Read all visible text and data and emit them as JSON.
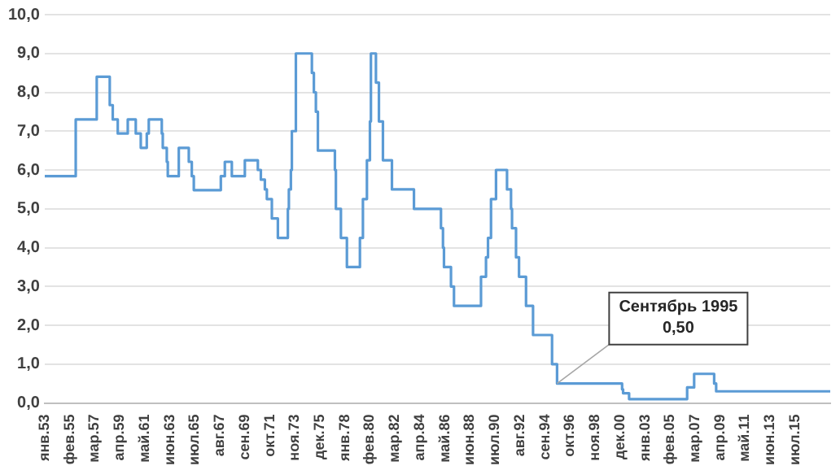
{
  "chart_data": {
    "type": "step",
    "line_style": "solid",
    "marker": "none",
    "grid": "y",
    "legend": false,
    "x": [
      "1953-01",
      "1955-08",
      "1957-05",
      "1958-06",
      "1958-09",
      "1959-02",
      "1959-12",
      "1960-08",
      "1961-01",
      "1961-07",
      "1961-09",
      "1962-10",
      "1962-11",
      "1963-03",
      "1963-04",
      "1964-03",
      "1965-01",
      "1965-04",
      "1965-06",
      "1967-09",
      "1968-01",
      "1968-08",
      "1969-09",
      "1970-10",
      "1971-01",
      "1971-05",
      "1971-07",
      "1971-12",
      "1972-06",
      "1973-04",
      "1973-05",
      "1973-07",
      "1973-08",
      "1973-12",
      "1975-04",
      "1975-06",
      "1975-08",
      "1975-10",
      "1977-03",
      "1977-04",
      "1977-09",
      "1978-03",
      "1979-04",
      "1979-07",
      "1979-11",
      "1980-02",
      "1980-03",
      "1980-08",
      "1980-11",
      "1981-03",
      "1981-12",
      "1983-10",
      "1986-01",
      "1986-03",
      "1986-04",
      "1986-11",
      "1987-02",
      "1989-05",
      "1989-10",
      "1989-12",
      "1990-03",
      "1990-08",
      "1991-07",
      "1991-11",
      "1991-12",
      "1992-04",
      "1992-07",
      "1993-02",
      "1993-09",
      "1995-04",
      "1995-09",
      "2001-02",
      "2001-03",
      "2001-09",
      "2006-07",
      "2007-02",
      "2008-10",
      "2008-12",
      "2018-06"
    ],
    "series": [
      {
        "color": "#5b9bd5",
        "values": [
          5.84,
          7.3,
          8.4,
          7.67,
          7.3,
          6.94,
          7.3,
          6.94,
          6.57,
          6.94,
          7.3,
          6.94,
          6.57,
          6.21,
          5.84,
          6.57,
          6.21,
          5.84,
          5.48,
          5.84,
          6.21,
          5.84,
          6.25,
          6.0,
          5.75,
          5.5,
          5.25,
          4.75,
          4.25,
          5.0,
          5.5,
          6.0,
          7.0,
          9.0,
          8.5,
          8.0,
          7.5,
          6.5,
          6.0,
          5.0,
          4.25,
          3.5,
          4.25,
          5.25,
          6.25,
          7.25,
          9.0,
          8.25,
          7.25,
          6.25,
          5.5,
          5.0,
          4.5,
          4.0,
          3.5,
          3.0,
          2.5,
          3.25,
          3.75,
          4.25,
          5.25,
          6.0,
          5.5,
          5.0,
          4.5,
          3.75,
          3.25,
          2.5,
          1.75,
          1.0,
          0.5,
          0.35,
          0.25,
          0.1,
          0.4,
          0.75,
          0.5,
          0.3,
          0.3
        ]
      }
    ],
    "xlim": [
      "1953-01",
      "2018-06"
    ],
    "xticks": [
      {
        "value": "1953-01",
        "label": "янв.53"
      },
      {
        "value": "1955-02",
        "label": "фев.55"
      },
      {
        "value": "1957-03",
        "label": "мар.57"
      },
      {
        "value": "1959-04",
        "label": "апр.59"
      },
      {
        "value": "1961-05",
        "label": "май.61"
      },
      {
        "value": "1963-06",
        "label": "июн.63"
      },
      {
        "value": "1965-07",
        "label": "июл.65"
      },
      {
        "value": "1967-08",
        "label": "авг.67"
      },
      {
        "value": "1969-09",
        "label": "сен.69"
      },
      {
        "value": "1971-10",
        "label": "окт.71"
      },
      {
        "value": "1973-11",
        "label": "ноя.73"
      },
      {
        "value": "1975-12",
        "label": "дек.75"
      },
      {
        "value": "1978-01",
        "label": "янв.78"
      },
      {
        "value": "1980-02",
        "label": "фев.80"
      },
      {
        "value": "1982-03",
        "label": "мар.82"
      },
      {
        "value": "1984-04",
        "label": "апр.84"
      },
      {
        "value": "1986-05",
        "label": "май.86"
      },
      {
        "value": "1988-06",
        "label": "июн.88"
      },
      {
        "value": "1990-07",
        "label": "июл.90"
      },
      {
        "value": "1992-08",
        "label": "авг.92"
      },
      {
        "value": "1994-09",
        "label": "сен.94"
      },
      {
        "value": "1996-10",
        "label": "окт.96"
      },
      {
        "value": "1998-11",
        "label": "ноя.98"
      },
      {
        "value": "2000-12",
        "label": "дек.00"
      },
      {
        "value": "2003-01",
        "label": "янв.03"
      },
      {
        "value": "2005-02",
        "label": "фев.05"
      },
      {
        "value": "2007-03",
        "label": "мар.07"
      },
      {
        "value": "2009-04",
        "label": "апр.09"
      },
      {
        "value": "2011-05",
        "label": "май.11"
      },
      {
        "value": "2013-06",
        "label": "июн.13"
      },
      {
        "value": "2015-07",
        "label": "июл.15"
      }
    ],
    "ylim": [
      0,
      10
    ],
    "yticks": [
      {
        "value": 0,
        "label": "0,0"
      },
      {
        "value": 1,
        "label": "1,0"
      },
      {
        "value": 2,
        "label": "2,0"
      },
      {
        "value": 3,
        "label": "3,0"
      },
      {
        "value": 4,
        "label": "4,0"
      },
      {
        "value": 5,
        "label": "5,0"
      },
      {
        "value": 6,
        "label": "6,0"
      },
      {
        "value": 7,
        "label": "7,0"
      },
      {
        "value": 8,
        "label": "8,0"
      },
      {
        "value": 9,
        "label": "9,0"
      },
      {
        "value": 10,
        "label": "10,0"
      }
    ],
    "annotations": [
      {
        "text": "Сентябрь 1995\n0,50",
        "x": "1995-09",
        "y": 0.5
      }
    ]
  }
}
